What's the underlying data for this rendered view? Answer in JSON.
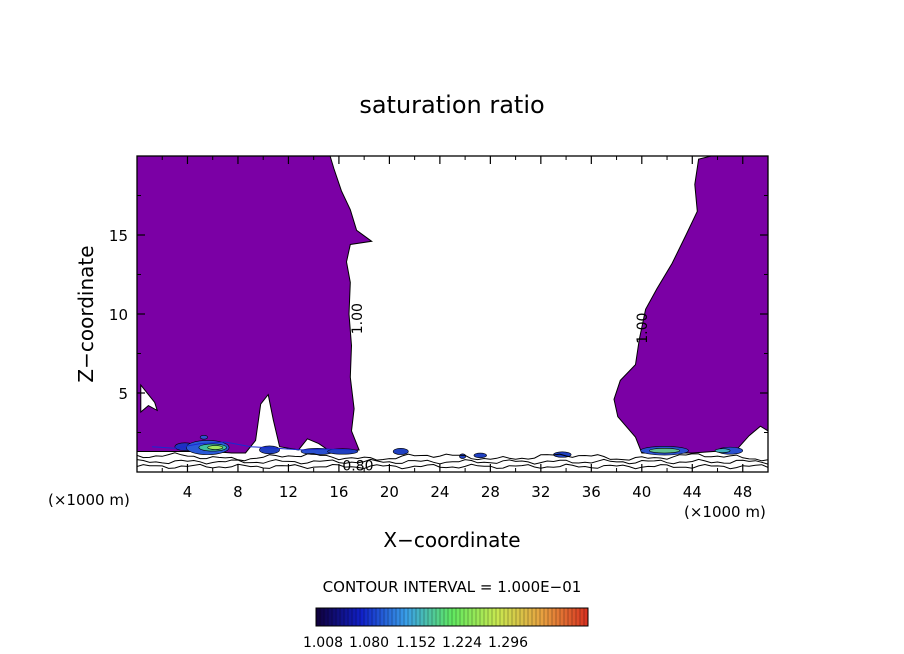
{
  "chart_data": {
    "type": "contour",
    "title": "saturation ratio",
    "xlabel": "X−coordinate",
    "ylabel": "Z−coordinate",
    "x_unit_left": "(×1000 m)",
    "x_unit_right": "(×1000 m)",
    "xlim": [
      0,
      50
    ],
    "ylim": [
      0,
      20
    ],
    "x_ticks": [
      4,
      8,
      12,
      16,
      20,
      24,
      28,
      32,
      36,
      40,
      44,
      48
    ],
    "y_ticks": [
      5,
      10,
      15
    ],
    "contour_interval_text": "CONTOUR INTERVAL = 1.000E−01",
    "contour_labels": [
      {
        "text": "1.00",
        "x": 17.5,
        "z": 9.7,
        "rotate": -90
      },
      {
        "text": "1.00",
        "x": 40.1,
        "z": 9.1,
        "rotate": -90
      },
      {
        "text": "0.80",
        "x": 17.5,
        "z": 0.35,
        "rotate": 0
      }
    ],
    "colorbar": {
      "tick_labels": [
        "1.008",
        "1.080",
        "1.152",
        "1.224",
        "1.296"
      ],
      "stops": [
        "#10003a",
        "#1020c8",
        "#3aa0e8",
        "#60e860",
        "#c8e850",
        "#e8a040",
        "#d83020"
      ]
    },
    "colors": {
      "supersaturated": "#7b00a5",
      "contour": "#000000",
      "background": "#ffffff"
    },
    "regions": [
      {
        "name": "left-supersaturated",
        "boundary": [
          [
            0,
            20
          ],
          [
            15.3,
            20
          ],
          [
            15.6,
            19.2
          ],
          [
            16.2,
            17.8
          ],
          [
            16.9,
            16.6
          ],
          [
            17.4,
            15.3
          ],
          [
            18.6,
            14.6
          ],
          [
            16.9,
            14.4
          ],
          [
            16.6,
            13.3
          ],
          [
            16.9,
            12.0
          ],
          [
            16.8,
            10.0
          ],
          [
            17.0,
            8.0
          ],
          [
            16.9,
            6.0
          ],
          [
            17.2,
            4.0
          ],
          [
            17.0,
            2.6
          ],
          [
            17.6,
            1.4
          ],
          [
            15.5,
            1.2
          ],
          [
            14.4,
            1.8
          ],
          [
            13.5,
            2.1
          ],
          [
            12.8,
            1.4
          ],
          [
            11.3,
            1.6
          ],
          [
            10.8,
            3.3
          ],
          [
            10.4,
            4.9
          ],
          [
            9.8,
            4.3
          ],
          [
            9.4,
            2.0
          ],
          [
            8.6,
            1.2
          ],
          [
            7.5,
            1.2
          ],
          [
            6.0,
            1.3
          ],
          [
            4.0,
            1.3
          ],
          [
            2.2,
            1.3
          ],
          [
            0,
            1.3
          ]
        ]
      },
      {
        "name": "right-supersaturated",
        "boundary": [
          [
            50,
            20
          ],
          [
            45.5,
            20
          ],
          [
            44.5,
            19.8
          ],
          [
            44.2,
            18.2
          ],
          [
            44.4,
            16.5
          ],
          [
            43.5,
            15.0
          ],
          [
            42.4,
            13.2
          ],
          [
            41.2,
            11.6
          ],
          [
            40.3,
            10.3
          ],
          [
            39.8,
            8.4
          ],
          [
            39.5,
            6.8
          ],
          [
            38.3,
            5.8
          ],
          [
            37.8,
            4.6
          ],
          [
            38.1,
            3.5
          ],
          [
            39.5,
            2.2
          ],
          [
            40.0,
            1.2
          ],
          [
            44.0,
            1.2
          ],
          [
            47.5,
            1.4
          ],
          [
            48.5,
            2.3
          ],
          [
            49.4,
            2.9
          ],
          [
            50,
            2.6
          ]
        ]
      }
    ],
    "clear_pockets": [
      {
        "boundary": [
          [
            0.3,
            5.5
          ],
          [
            1.4,
            4.4
          ],
          [
            1.6,
            3.9
          ],
          [
            0.9,
            4.2
          ],
          [
            0.3,
            3.8
          ]
        ]
      }
    ],
    "patches": [
      {
        "x": 3.8,
        "z": 1.6,
        "w": 1.6,
        "h": 0.5,
        "color": "#2030c0"
      },
      {
        "x": 5.6,
        "z": 1.55,
        "w": 3.4,
        "h": 0.9,
        "color": "#2a5ad8"
      },
      {
        "x": 6.0,
        "z": 1.55,
        "w": 2.2,
        "h": 0.45,
        "color": "#40c0a0"
      },
      {
        "x": 6.2,
        "z": 1.55,
        "w": 1.2,
        "h": 0.25,
        "color": "#a0e860"
      },
      {
        "x": 5.3,
        "z": 2.2,
        "w": 0.6,
        "h": 0.25,
        "color": "#3050d0"
      },
      {
        "x": 10.5,
        "z": 1.4,
        "w": 1.6,
        "h": 0.5,
        "color": "#2040c0"
      },
      {
        "x": 14.3,
        "z": 1.3,
        "w": 2.6,
        "h": 0.4,
        "color": "#2a50d0"
      },
      {
        "x": 16.3,
        "z": 1.3,
        "w": 2.4,
        "h": 0.35,
        "color": "#2040c0"
      },
      {
        "x": 20.9,
        "z": 1.3,
        "w": 1.2,
        "h": 0.4,
        "color": "#2040c0"
      },
      {
        "x": 25.8,
        "z": 1.0,
        "w": 0.5,
        "h": 0.3,
        "color": "#2040c0"
      },
      {
        "x": 27.2,
        "z": 1.05,
        "w": 1.0,
        "h": 0.3,
        "color": "#2040c0"
      },
      {
        "x": 33.7,
        "z": 1.1,
        "w": 1.4,
        "h": 0.35,
        "color": "#2040c0"
      },
      {
        "x": 41.8,
        "z": 1.35,
        "w": 3.8,
        "h": 0.55,
        "color": "#2a50d0"
      },
      {
        "x": 41.8,
        "z": 1.35,
        "w": 2.4,
        "h": 0.3,
        "color": "#60c090"
      },
      {
        "x": 47.0,
        "z": 1.35,
        "w": 2.0,
        "h": 0.45,
        "color": "#2a50d0"
      },
      {
        "x": 46.4,
        "z": 1.35,
        "w": 1.2,
        "h": 0.25,
        "color": "#40b0c0"
      }
    ],
    "blue_edge_contour": [
      [
        1.2,
        1.6
      ],
      [
        3,
        1.5
      ],
      [
        5,
        1.8
      ],
      [
        7,
        1.9
      ],
      [
        9,
        1.6
      ],
      [
        11,
        1.5
      ],
      [
        13,
        1.4
      ],
      [
        15,
        1.45
      ],
      [
        17,
        1.4
      ]
    ],
    "low_contour_levels_z": [
      0.35,
      0.65,
      0.95
    ]
  }
}
